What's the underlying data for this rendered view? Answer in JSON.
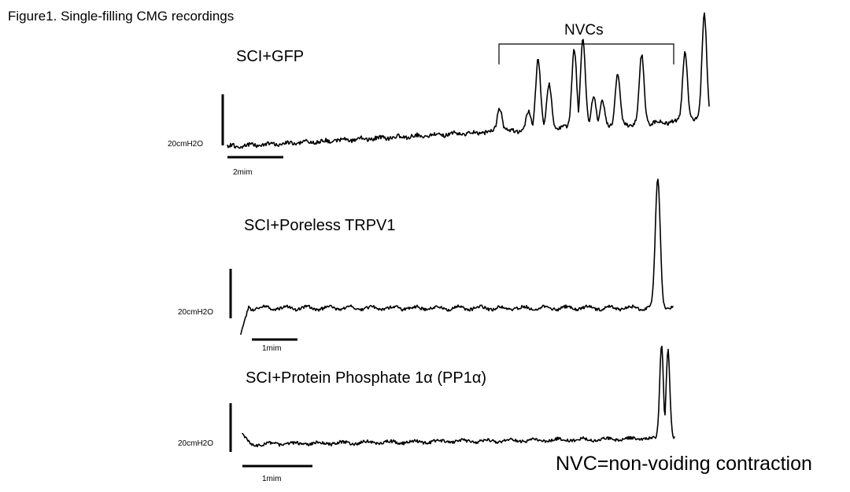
{
  "figure_title": "Figure1. Single-filling CMG recordings",
  "footnote": "NVC=non-voiding contraction",
  "chart_data": [
    {
      "type": "line",
      "title": "SCI+GFP",
      "y_scale_bar_label": "20cmH2O",
      "x_scale_bar_label": "2mim",
      "bracket_label": "NVCs",
      "note": "baseline slowly rising, then repeated non-voiding contractions, final void peak",
      "peaks": [
        {
          "t": 0.565,
          "h": 0.22
        },
        {
          "t": 0.625,
          "h": 0.16
        },
        {
          "t": 0.645,
          "h": 0.65
        },
        {
          "t": 0.668,
          "h": 0.4
        },
        {
          "t": 0.72,
          "h": 0.72
        },
        {
          "t": 0.738,
          "h": 0.8
        },
        {
          "t": 0.76,
          "h": 0.28
        },
        {
          "t": 0.778,
          "h": 0.22
        },
        {
          "t": 0.81,
          "h": 0.45
        },
        {
          "t": 0.86,
          "h": 0.62
        },
        {
          "t": 0.95,
          "h": 0.65
        },
        {
          "t": 0.99,
          "h": 0.98
        }
      ]
    },
    {
      "type": "line",
      "title": "SCI+Poreless TRPV1",
      "y_scale_bar_label": "20cmH2O",
      "x_scale_bar_label": "1mim",
      "note": "flat baseline with small waves, single large void peak near end",
      "peaks": [
        {
          "t": 0.965,
          "h": 1.0
        }
      ]
    },
    {
      "type": "line",
      "title": "SCI+Protein Phosphate 1α (PP1α)",
      "y_scale_bar_label": "20cmH2O",
      "x_scale_bar_label": "1mim",
      "note": "flat baseline with small waves, double void peak near end",
      "peaks": [
        {
          "t": 0.97,
          "h": 0.92
        },
        {
          "t": 0.985,
          "h": 0.88
        }
      ]
    }
  ]
}
